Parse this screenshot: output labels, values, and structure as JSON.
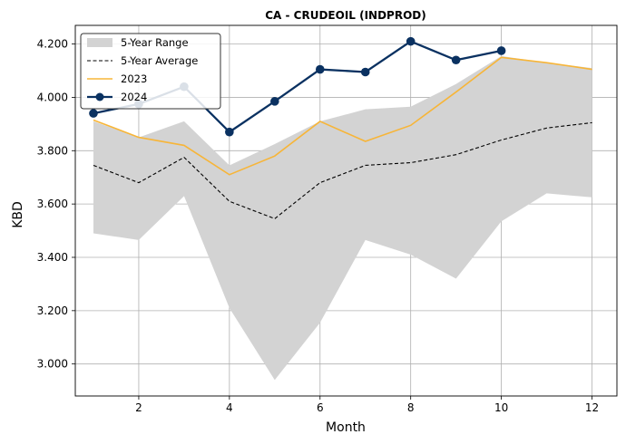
{
  "chart_data": {
    "type": "line",
    "title": "CA - CRUDEOIL (INDPROD)",
    "xlabel": "Month",
    "ylabel": "KBD",
    "xlim": [
      0.6,
      12.55
    ],
    "ylim": [
      2.88,
      4.27
    ],
    "xticks": [
      2,
      4,
      6,
      8,
      10,
      12
    ],
    "xtick_labels": [
      "2",
      "4",
      "6",
      "8",
      "10",
      "12"
    ],
    "yticks": [
      3.0,
      3.2,
      3.4,
      3.6,
      3.8,
      4.0,
      4.2
    ],
    "ytick_labels": [
      "3.000",
      "3.200",
      "3.400",
      "3.600",
      "3.800",
      "4.000",
      "4.200"
    ],
    "grid": true,
    "legend_position": "top-left",
    "months": [
      1,
      2,
      3,
      4,
      5,
      6,
      7,
      8,
      9,
      10,
      11,
      12
    ],
    "range_lower": [
      3.49,
      3.465,
      3.63,
      3.21,
      2.94,
      3.155,
      3.465,
      3.41,
      3.32,
      3.535,
      3.64,
      3.625
    ],
    "range_upper": [
      3.91,
      3.85,
      3.91,
      3.745,
      3.825,
      3.91,
      3.955,
      3.965,
      4.05,
      4.155,
      4.13,
      4.11
    ],
    "series": [
      {
        "name": "5-Year Range",
        "style": "band",
        "color": "#d3d3d3"
      },
      {
        "name": "5-Year Average",
        "style": "dashed",
        "color": "#000000",
        "x": [
          1,
          2,
          3,
          4,
          5,
          6,
          7,
          8,
          9,
          10,
          11,
          12
        ],
        "values": [
          3.745,
          3.68,
          3.775,
          3.61,
          3.545,
          3.68,
          3.745,
          3.755,
          3.785,
          3.84,
          3.885,
          3.905
        ]
      },
      {
        "name": "2023",
        "style": "line",
        "color": "#f7b538",
        "x": [
          1,
          2,
          3,
          4,
          5,
          6,
          7,
          8,
          9,
          10,
          11,
          12
        ],
        "values": [
          3.915,
          3.85,
          3.82,
          3.71,
          3.78,
          3.91,
          3.835,
          3.895,
          4.02,
          4.15,
          4.13,
          4.105
        ]
      },
      {
        "name": "2024",
        "style": "line-marker",
        "color": "#0a3161",
        "x": [
          1,
          2,
          3,
          4,
          5,
          6,
          7,
          8,
          9,
          10
        ],
        "values": [
          3.94,
          3.975,
          4.04,
          3.87,
          3.985,
          4.105,
          4.095,
          4.21,
          4.14,
          4.175
        ]
      }
    ]
  }
}
